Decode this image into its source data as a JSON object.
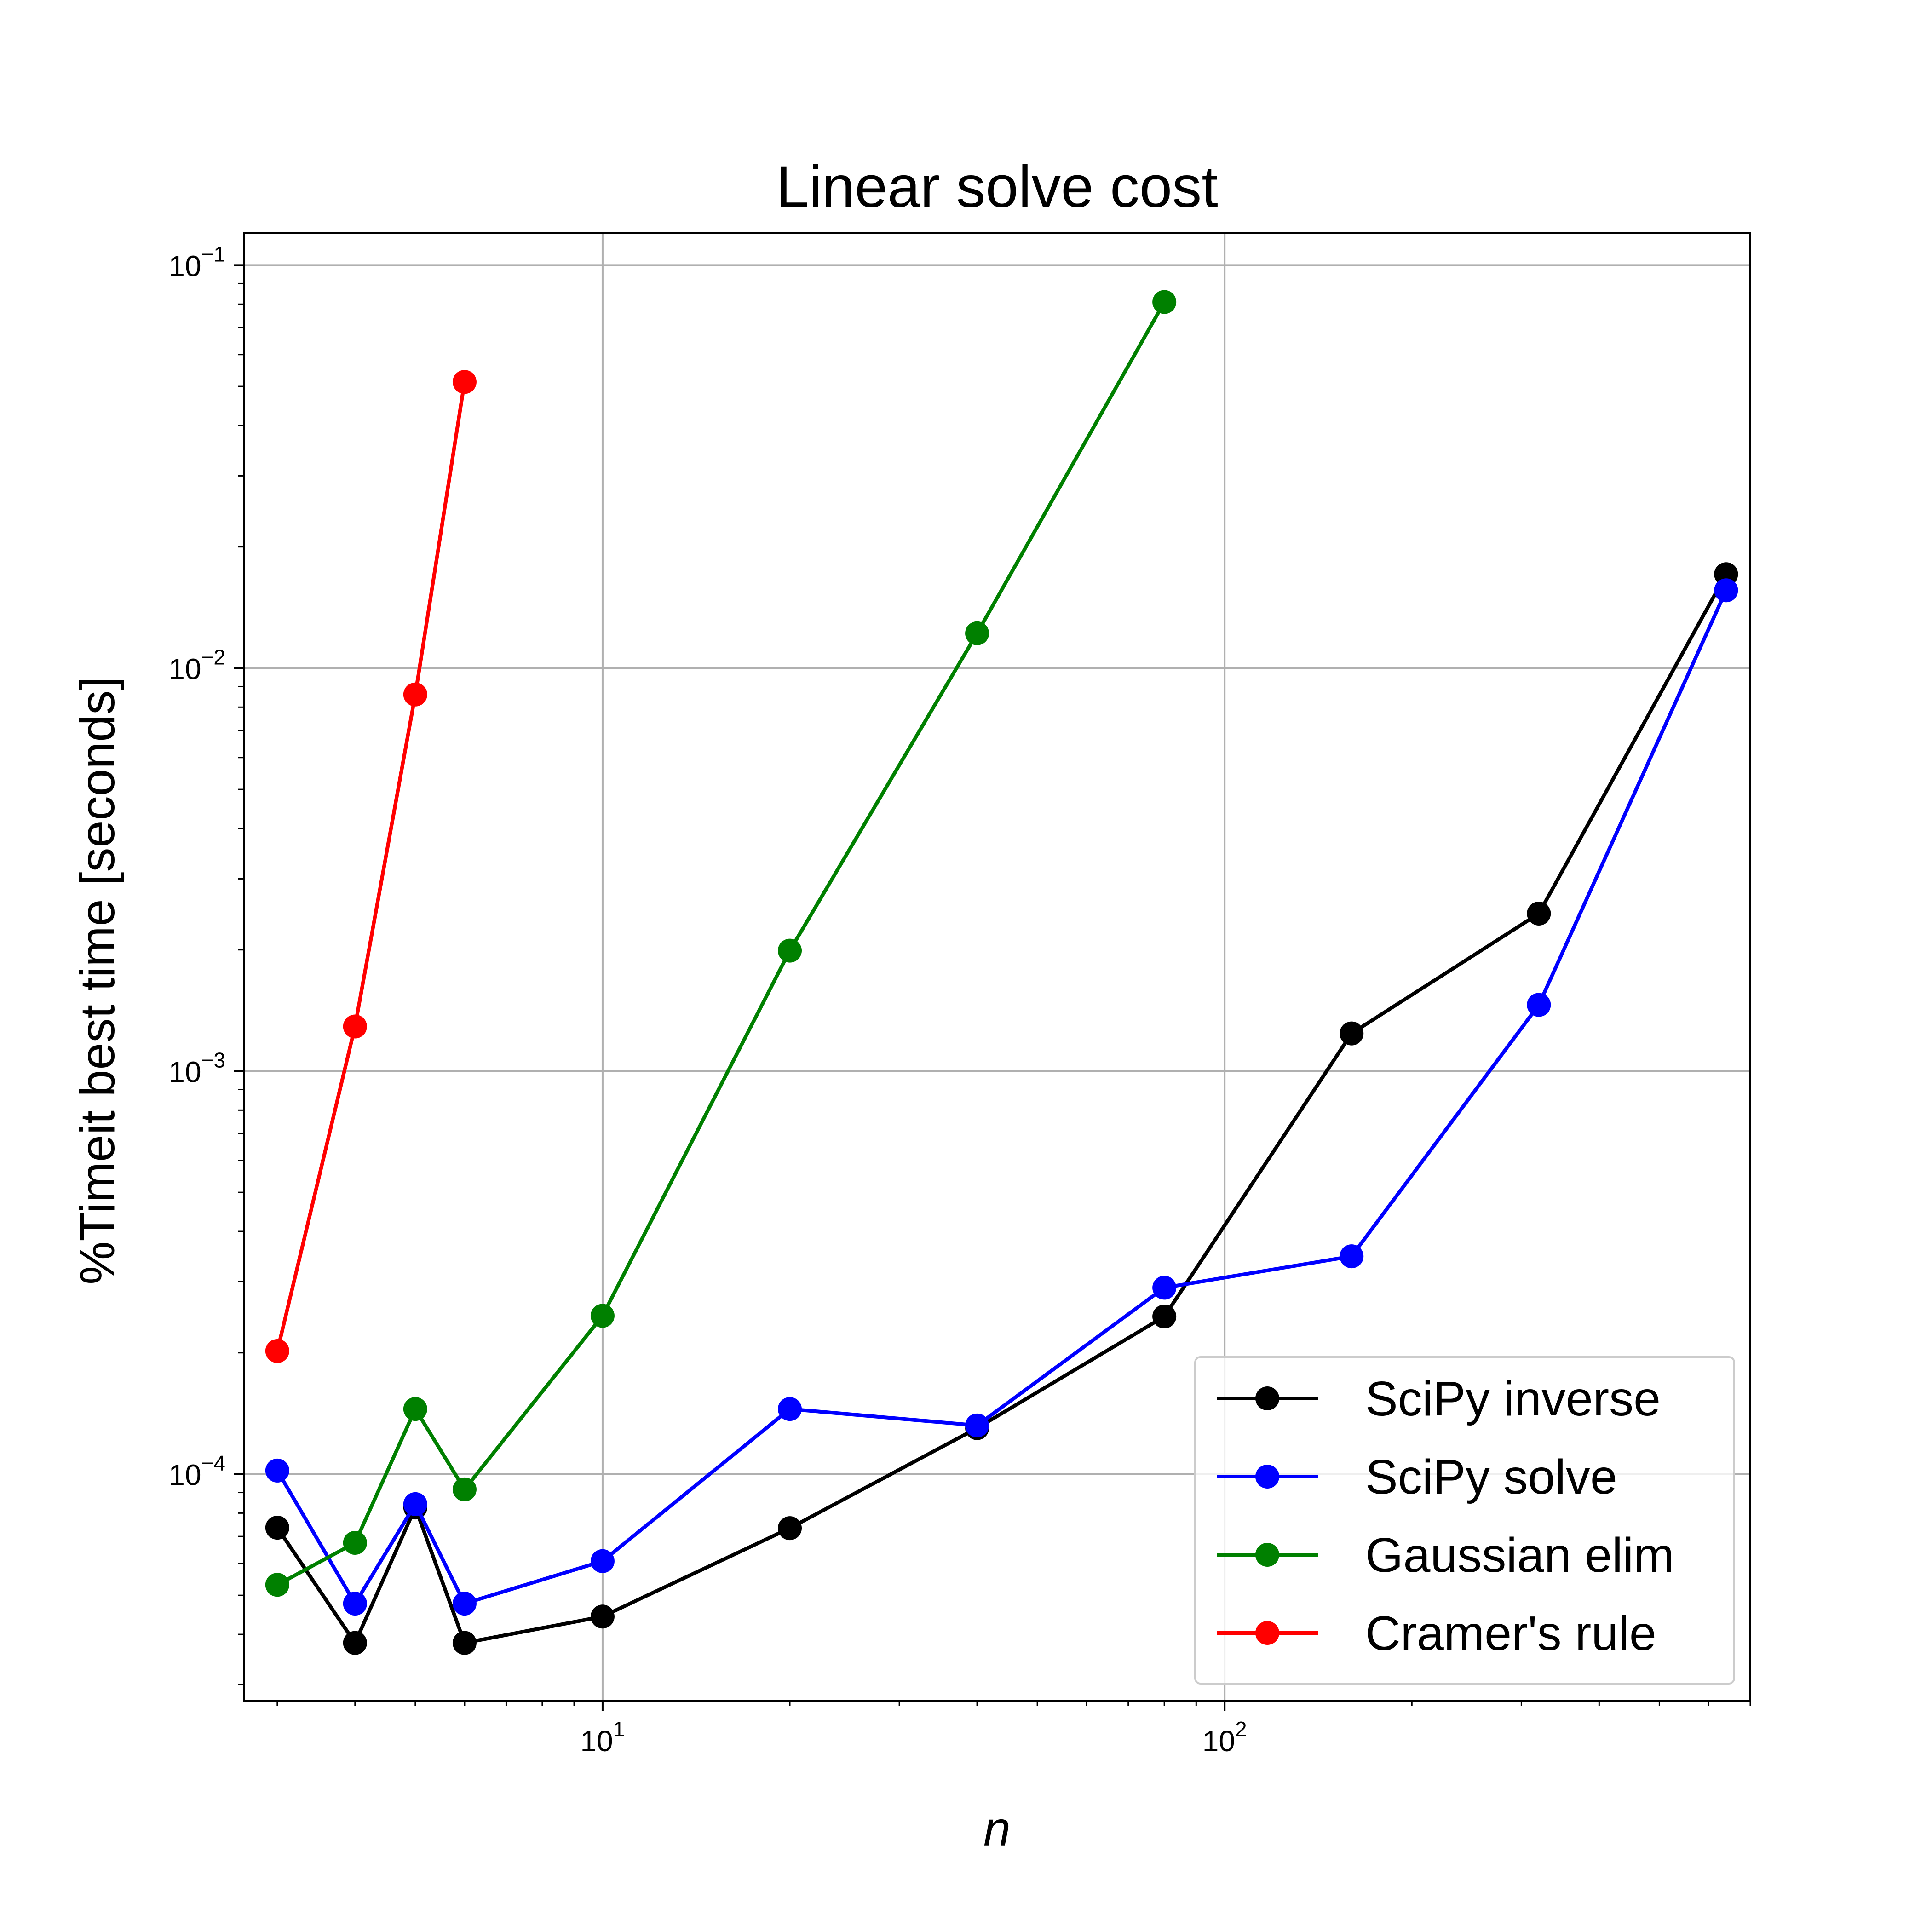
{
  "chart_data": {
    "type": "line",
    "title": "Linear solve cost",
    "xlabel": "n",
    "ylabel": "%Timeit best time [seconds]",
    "xscale": "log",
    "yscale": "log",
    "xlim": [
      2.65,
      700
    ],
    "ylim": [
      2.74e-05,
      0.12
    ],
    "x_ticks": [
      {
        "base": "10",
        "exp": "1",
        "value": 10
      },
      {
        "base": "10",
        "exp": "2",
        "value": 100
      }
    ],
    "y_ticks": [
      {
        "base": "10",
        "exp": "−4",
        "value": 0.0001
      },
      {
        "base": "10",
        "exp": "−3",
        "value": 0.001
      },
      {
        "base": "10",
        "exp": "−2",
        "value": 0.01
      },
      {
        "base": "10",
        "exp": "−1",
        "value": 0.1
      }
    ],
    "grid": true,
    "legend_position": "lower-right",
    "series": [
      {
        "name": "SciPy inverse",
        "color": "#000000",
        "x": [
          3,
          4,
          5,
          6,
          10,
          20,
          40,
          80,
          160,
          320,
          640
        ],
        "y": [
          7.36e-05,
          3.81e-05,
          8.26e-05,
          3.81e-05,
          4.43e-05,
          7.34e-05,
          0.00013,
          0.000246,
          0.00124,
          0.00246,
          0.0171
        ]
      },
      {
        "name": "SciPy solve",
        "color": "#0000ff",
        "x": [
          3,
          4,
          5,
          6,
          10,
          20,
          40,
          80,
          160,
          320,
          640
        ],
        "y": [
          0.000102,
          4.77e-05,
          8.42e-05,
          4.77e-05,
          6.08e-05,
          0.000145,
          0.000132,
          0.00029,
          0.000347,
          0.00146,
          0.0156
        ]
      },
      {
        "name": "Gaussian elim",
        "color": "#008000",
        "x": [
          3,
          4,
          5,
          6,
          10,
          20,
          40,
          80
        ],
        "y": [
          5.31e-05,
          6.75e-05,
          0.000145,
          9.16e-05,
          0.000247,
          0.00199,
          0.0122,
          0.081
        ]
      },
      {
        "name": "Cramer's rule",
        "color": "#ff0000",
        "x": [
          3,
          4,
          5,
          6
        ],
        "y": [
          0.000202,
          0.00129,
          0.0086,
          0.0513
        ]
      }
    ]
  }
}
